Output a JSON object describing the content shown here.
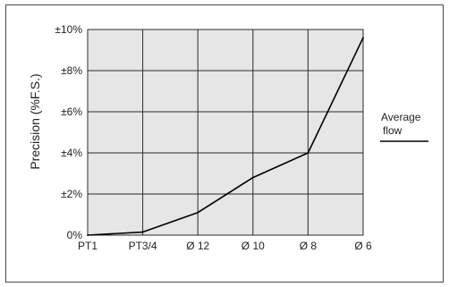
{
  "chart_data": {
    "type": "line",
    "title": "",
    "xlabel": "",
    "ylabel": "Precision (%F.S.)",
    "categories": [
      "PT1",
      "PT3/4",
      "Ø 12",
      "Ø 10",
      "Ø 8",
      "Ø 6"
    ],
    "y_tick_labels": [
      "0%",
      "±2%",
      "±4%",
      "±6%",
      "±8%",
      "±10%"
    ],
    "ylim": [
      0,
      10
    ],
    "grid": true,
    "legend": {
      "label": "Average flow",
      "position": "right"
    },
    "series": [
      {
        "values": [
          0,
          0.15,
          1.1,
          2.8,
          4.0,
          9.6
        ]
      }
    ],
    "colors": {
      "plot_bg": "#e6e6e6",
      "grid": "#2b2b2b",
      "line": "#000000"
    }
  }
}
